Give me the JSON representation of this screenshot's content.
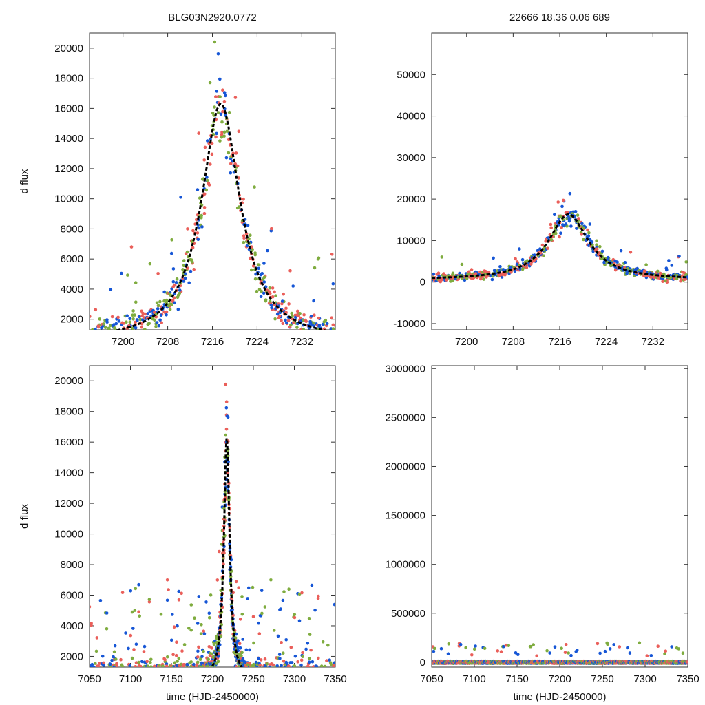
{
  "colors": {
    "green": "#7fac3f",
    "red": "#ea5f5a",
    "blue": "#1656d6",
    "model": "#000000",
    "frame": "#333333"
  },
  "chart_data": [
    {
      "id": "top-left",
      "type": "scatter",
      "title": "BLG03N2920.0772",
      "xlabel": "",
      "ylabel": "d flux",
      "xlim": [
        7194,
        7238
      ],
      "ylim": [
        1300,
        21000
      ],
      "xticks": [
        7200,
        7208,
        7216,
        7224,
        7232
      ],
      "yticks": [
        2000,
        4000,
        6000,
        8000,
        10000,
        12000,
        14000,
        16000,
        18000,
        20000
      ],
      "grid": false,
      "model": {
        "t0": 7217.5,
        "peak": 16300,
        "base": 500,
        "tE": 4.2,
        "name": "model fit"
      },
      "series": [
        {
          "name": "green",
          "color_key": "green"
        },
        {
          "name": "red",
          "color_key": "red"
        },
        {
          "name": "blue",
          "color_key": "blue"
        }
      ]
    },
    {
      "id": "top-right",
      "type": "scatter",
      "title": "22666  18.36  0.06  689",
      "xlabel": "",
      "ylabel": "",
      "xlim": [
        7194,
        7238
      ],
      "ylim": [
        -11500,
        60000
      ],
      "xticks": [
        7200,
        7208,
        7216,
        7224,
        7232
      ],
      "yticks": [
        -10000,
        0,
        10000,
        20000,
        30000,
        40000,
        50000
      ],
      "grid": false,
      "model": {
        "t0": 7217.5,
        "peak": 16300,
        "base": 500,
        "tE": 4.2,
        "name": "model fit"
      },
      "series": [
        {
          "name": "green",
          "color_key": "green"
        },
        {
          "name": "red",
          "color_key": "red"
        },
        {
          "name": "blue",
          "color_key": "blue"
        }
      ]
    },
    {
      "id": "bottom-left",
      "type": "scatter",
      "title": "",
      "xlabel": "time (HJD-2450000)",
      "ylabel": "d flux",
      "xlim": [
        7050,
        7350
      ],
      "ylim": [
        1300,
        21000
      ],
      "xticks": [
        7050,
        7100,
        7150,
        7200,
        7250,
        7300,
        7350
      ],
      "yticks": [
        2000,
        4000,
        6000,
        8000,
        10000,
        12000,
        14000,
        16000,
        18000,
        20000
      ],
      "grid": false,
      "model": {
        "t0": 7217.5,
        "peak": 16300,
        "base": 500,
        "tE": 4.2,
        "name": "model fit"
      },
      "series": [
        {
          "name": "green",
          "color_key": "green"
        },
        {
          "name": "red",
          "color_key": "red"
        },
        {
          "name": "blue",
          "color_key": "blue"
        }
      ]
    },
    {
      "id": "bottom-right",
      "type": "scatter",
      "title": "",
      "xlabel": "time (HJD-2450000)",
      "ylabel": "",
      "xlim": [
        7050,
        7350
      ],
      "ylim": [
        -50000,
        3030000
      ],
      "xticks": [
        7050,
        7100,
        7150,
        7200,
        7250,
        7300,
        7350
      ],
      "yticks": [
        0,
        500000,
        1000000,
        1500000,
        2000000,
        2500000,
        3000000
      ],
      "grid": false,
      "model": null,
      "series": [
        {
          "name": "green",
          "color_key": "green"
        },
        {
          "name": "red",
          "color_key": "red"
        },
        {
          "name": "blue",
          "color_key": "blue"
        }
      ]
    }
  ]
}
